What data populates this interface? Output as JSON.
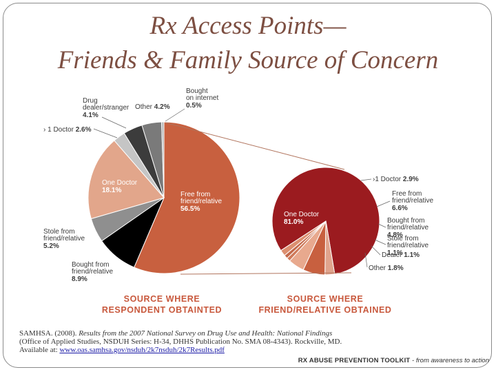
{
  "title_line1": "Rx Access Points—",
  "title_line2": "Friends & Family Source of Concern",
  "colors": {
    "title": "#7d4f42",
    "caption": "#c8583c",
    "left_main": "#c8603f",
    "right_main": "#9b1b1f"
  },
  "chart_data": [
    {
      "type": "pie",
      "caption": [
        "SOURCE WHERE",
        "RESPONDENT OBTAINTED"
      ],
      "slices": [
        {
          "label": "Free from friend/relative",
          "label_lines": [
            "Free from",
            "friend/relative"
          ],
          "value_text": "56.5%",
          "value": 56.5,
          "color": "#c8603f"
        },
        {
          "label": "Bought from friend/relative",
          "label_lines": [
            "Bought from",
            "friend/relative"
          ],
          "value_text": "8.9%",
          "value": 8.9,
          "color": "#000000"
        },
        {
          "label": "Stole from friend/relative",
          "label_lines": [
            "Stole from",
            "friend/relative"
          ],
          "value_text": "5.2%",
          "value": 5.2,
          "color": "#8f8f8f"
        },
        {
          "label": "One Doctor",
          "label_lines": [
            "One Doctor"
          ],
          "value_text": "18.1%",
          "value": 18.1,
          "color": "#e2a68b"
        },
        {
          "label": "> 1 Doctor",
          "label_lines": [
            "› 1 Doctor"
          ],
          "value_text": "2.6%",
          "value": 2.6,
          "color": "#c5c5c5"
        },
        {
          "label": "Drug dealer/stranger",
          "label_lines": [
            "Drug",
            "dealer/stranger"
          ],
          "value_text": "4.1%",
          "value": 4.1,
          "color": "#3c3c3c"
        },
        {
          "label": "Other",
          "label_lines": [
            "Other"
          ],
          "value_text": "4.2%",
          "value": 4.2,
          "color": "#7a7a7a"
        },
        {
          "label": "Bought on internet",
          "label_lines": [
            "Bought",
            "on internet"
          ],
          "value_text": "0.5%",
          "value": 0.5,
          "color": "#b5b5b5"
        }
      ]
    },
    {
      "type": "pie",
      "caption": [
        "SOURCE WHERE",
        "FRIEND/RELATIVE OBTAINED"
      ],
      "slices": [
        {
          "label": "One Doctor",
          "label_lines": [
            "One Doctor"
          ],
          "value_text": "81.0%",
          "value": 81.0,
          "color": "#9b1b1f"
        },
        {
          "label": ">1 Doctor",
          "label_lines": [
            "›1 Doctor"
          ],
          "value_text": "2.9%",
          "value": 2.9,
          "color": "#e0a48d"
        },
        {
          "label": "Free from friend/relative",
          "label_lines": [
            "Free from",
            "friend/relative"
          ],
          "value_text": "6.6%",
          "value": 6.6,
          "color": "#c8603f"
        },
        {
          "label": "Bought from friend/relative",
          "label_lines": [
            "Bought from",
            "friend/relative"
          ],
          "value_text": "4.8%",
          "value": 4.8,
          "color": "#e8a98e"
        },
        {
          "label": "Stole from friend/relative",
          "label_lines": [
            "Stole from",
            "friend/relative"
          ],
          "value_text": "1.1%",
          "value": 1.1,
          "color": "#d07a5a"
        },
        {
          "label": "Dealer",
          "label_lines": [
            "Dealer"
          ],
          "value_text": "1.1%",
          "value": 1.1,
          "color": "#c46a4c"
        },
        {
          "label": "Other",
          "label_lines": [
            "Other"
          ],
          "value_text": "1.8%",
          "value": 1.8,
          "color": "#dc8f70"
        }
      ]
    }
  ],
  "citation": {
    "prefix": "SAMHSA. (2008). ",
    "title_italic": "Results from the 2007 National Survey on Drug Use and Health: National Findings",
    "line2": "(Office of Applied Studies, NSDUH Series: H-34, DHHS Publication No. SMA 08-4343). Rockville, MD.",
    "available": "Available at: ",
    "url": "www.oas.samhsa.gov/nsduh/2k7nsduh/2k7Results.pdf"
  },
  "footer": {
    "brand": "RX ABUSE PREVENTION TOOLKIT",
    "tagline": " - from awareness to action"
  }
}
